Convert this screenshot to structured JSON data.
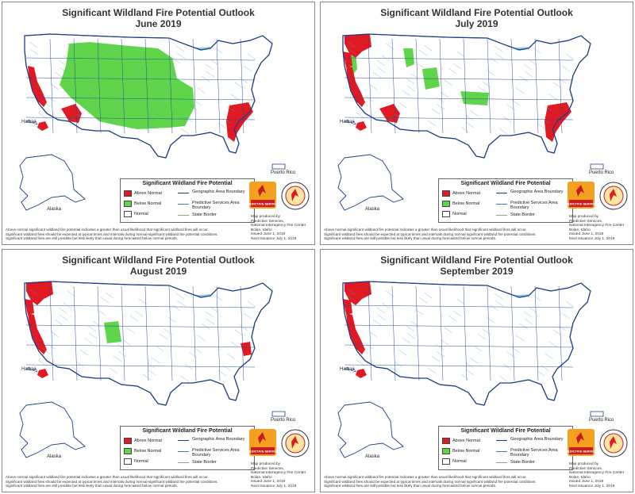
{
  "panels": [
    {
      "title": "Significant Wildland Fire Potential Outlook",
      "month": "June 2019",
      "areas": {
        "nw_red": false,
        "ca_red": true,
        "sw_red": true,
        "hi_red": true,
        "se_red": true,
        "green_big": true,
        "green_small": false,
        "green_ut": false,
        "green_ne": false
      }
    },
    {
      "title": "Significant Wildland Fire Potential Outlook",
      "month": "July 2019",
      "areas": {
        "nw_red": true,
        "ca_red": true,
        "sw_red": true,
        "hi_red": true,
        "se_red": true,
        "green_big": false,
        "green_small": true,
        "green_ut": false,
        "green_ne": false
      }
    },
    {
      "title": "Significant Wildland Fire Potential Outlook",
      "month": "August 2019",
      "areas": {
        "nw_red": true,
        "ca_red": true,
        "sw_red": false,
        "hi_red": true,
        "se_red": false,
        "nc_red": true,
        "green_big": false,
        "green_small": false,
        "green_ut": true,
        "green_ne": false
      }
    },
    {
      "title": "Significant Wildland Fire Potential Outlook",
      "month": "September 2019",
      "areas": {
        "nw_red": true,
        "ca_red": true,
        "sw_red": false,
        "hi_red": true,
        "se_red": false,
        "green_big": false,
        "green_small": false,
        "green_ut": false,
        "green_ne": false
      }
    }
  ],
  "legend": {
    "title": "Significant Wildland Fire Potential",
    "above": "Above Normal",
    "below": "Below Normal",
    "normal": "Normal",
    "geo": "Geographic Area Boundary",
    "psa": "Predictive Services Area Boundary",
    "state": "State Border"
  },
  "labels": {
    "hawaii": "Hawaii",
    "alaska": "Alaska",
    "pr": "Puerto Rico"
  },
  "logo_text": "PREDICTIVE SERVICES",
  "footer": [
    "Above normal significant wildland fire potential indicates a greater than usual likelihood that significant wildland fires will occur.",
    "Significant wildland fires should be expected at typical times and intervals during normal significant wildland fire potential conditions.",
    "Significant wildland fires are still possible but less likely than usual during forecasted below normal periods."
  ],
  "credit": {
    "l1": "Map produced by",
    "l2": "Predictive Services,",
    "l3": "National Interagency Fire Center",
    "l4": "Boise, Idaho",
    "l5": "Issued June 1, 2019",
    "l6": "Next issuance July 1, 2019"
  },
  "colors": {
    "above": "#e01a22",
    "below": "#5fd64a",
    "water": "#8fcdf0",
    "border": "#1a3d8a"
  }
}
